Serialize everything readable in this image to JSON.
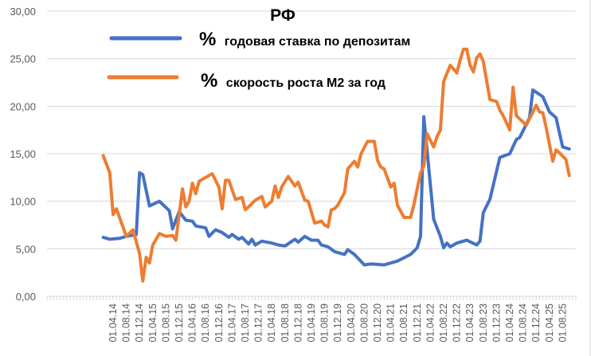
{
  "chart_data": {
    "type": "line",
    "title": "РФ",
    "xlabel": "",
    "ylabel": "",
    "ylim": [
      0,
      30
    ],
    "xlim": [
      "2012-08",
      "2025-12"
    ],
    "grid": true,
    "legend_placement": "top-center",
    "y_ticks": [
      "0,00",
      "5,00",
      "10,00",
      "15,00",
      "20,00",
      "25,00",
      "30,00"
    ],
    "y_tick_values": [
      0,
      5,
      10,
      15,
      20,
      25,
      30
    ],
    "x_tick_labels": [
      "01.04.14",
      "01.08.14",
      "01.12.14",
      "01.04.15",
      "01.08.15",
      "01.12.15",
      "01.04.16",
      "01.08.16",
      "01.12.16",
      "01.04.17",
      "01.08.17",
      "01.12.17",
      "01.04.18",
      "01.08.18",
      "01.12.18",
      "01.04.19",
      "01.08.19",
      "01.12.19",
      "01.04.20",
      "01.08.20",
      "01.12.20",
      "01.04.21",
      "01.08.21",
      "01.12.21",
      "01.04.22",
      "01.08.22",
      "01.12.22",
      "01.04.23",
      "01.08.23",
      "01.12.23",
      "01.04.24",
      "01.08.24",
      "01.12.24",
      "01.04.25",
      "01.08.25"
    ],
    "series": [
      {
        "name": "годовая ставка по депозитам",
        "legend_prefix": "%",
        "color": "#4472c4",
        "points": [
          [
            "2014-01",
            6.2
          ],
          [
            "2014-03",
            6.0
          ],
          [
            "2014-06",
            6.1
          ],
          [
            "2014-08",
            6.3
          ],
          [
            "2014-11",
            6.5
          ],
          [
            "2014-12",
            13.0
          ],
          [
            "2015-01",
            12.8
          ],
          [
            "2015-03",
            9.5
          ],
          [
            "2015-06",
            10.0
          ],
          [
            "2015-09",
            9.0
          ],
          [
            "2015-10",
            7.1
          ],
          [
            "2015-12",
            8.9
          ],
          [
            "2016-02",
            8.0
          ],
          [
            "2016-04",
            7.9
          ],
          [
            "2016-05",
            7.4
          ],
          [
            "2016-08",
            7.2
          ],
          [
            "2016-09",
            6.3
          ],
          [
            "2016-11",
            7.0
          ],
          [
            "2017-01",
            6.7
          ],
          [
            "2017-03",
            6.2
          ],
          [
            "2017-04",
            6.5
          ],
          [
            "2017-06",
            6.0
          ],
          [
            "2017-07",
            6.2
          ],
          [
            "2017-09",
            5.5
          ],
          [
            "2017-10",
            6.0
          ],
          [
            "2017-11",
            5.4
          ],
          [
            "2018-01",
            5.8
          ],
          [
            "2018-04",
            5.6
          ],
          [
            "2018-06",
            5.4
          ],
          [
            "2018-08",
            5.3
          ],
          [
            "2018-11",
            6.0
          ],
          [
            "2018-12",
            5.7
          ],
          [
            "2019-02",
            6.3
          ],
          [
            "2019-04",
            5.9
          ],
          [
            "2019-06",
            5.9
          ],
          [
            "2019-07",
            5.4
          ],
          [
            "2019-09",
            5.2
          ],
          [
            "2019-11",
            4.7
          ],
          [
            "2020-02",
            4.4
          ],
          [
            "2020-03",
            4.9
          ],
          [
            "2020-05",
            4.4
          ],
          [
            "2020-08",
            3.3
          ],
          [
            "2020-10",
            3.4
          ],
          [
            "2021-02",
            3.3
          ],
          [
            "2021-06",
            3.7
          ],
          [
            "2021-10",
            4.4
          ],
          [
            "2021-12",
            5.1
          ],
          [
            "2022-01",
            6.3
          ],
          [
            "2022-02",
            18.9
          ],
          [
            "2022-05",
            8.1
          ],
          [
            "2022-07",
            6.3
          ],
          [
            "2022-08",
            5.1
          ],
          [
            "2022-09",
            5.6
          ],
          [
            "2022-10",
            5.2
          ],
          [
            "2022-12",
            5.6
          ],
          [
            "2023-03",
            5.9
          ],
          [
            "2023-06",
            5.4
          ],
          [
            "2023-07",
            5.8
          ],
          [
            "2023-08",
            8.8
          ],
          [
            "2023-10",
            10.2
          ],
          [
            "2024-01",
            14.6
          ],
          [
            "2024-04",
            15.0
          ],
          [
            "2024-06",
            16.5
          ],
          [
            "2024-07",
            16.7
          ],
          [
            "2024-10",
            18.8
          ],
          [
            "2024-11",
            21.7
          ],
          [
            "2025-02",
            21.0
          ],
          [
            "2025-04",
            19.4
          ],
          [
            "2025-06",
            18.8
          ],
          [
            "2025-08",
            15.7
          ],
          [
            "2025-10",
            15.5
          ]
        ]
      },
      {
        "name": "скорость роста М2 за год",
        "legend_prefix": "%",
        "color": "#ed7d31",
        "points": [
          [
            "2014-01",
            14.8
          ],
          [
            "2014-03",
            13.0
          ],
          [
            "2014-04",
            8.6
          ],
          [
            "2014-05",
            9.2
          ],
          [
            "2014-08",
            6.3
          ],
          [
            "2014-10",
            7.0
          ],
          [
            "2014-12",
            4.5
          ],
          [
            "2015-01",
            1.6
          ],
          [
            "2015-02",
            4.1
          ],
          [
            "2015-03",
            3.5
          ],
          [
            "2015-04",
            5.4
          ],
          [
            "2015-06",
            6.6
          ],
          [
            "2015-08",
            6.3
          ],
          [
            "2015-10",
            6.4
          ],
          [
            "2015-11",
            5.9
          ],
          [
            "2016-01",
            11.3
          ],
          [
            "2016-02",
            9.4
          ],
          [
            "2016-03",
            10.0
          ],
          [
            "2016-04",
            11.9
          ],
          [
            "2016-05",
            10.8
          ],
          [
            "2016-06",
            12.1
          ],
          [
            "2016-08",
            12.5
          ],
          [
            "2016-10",
            12.9
          ],
          [
            "2016-12",
            11.5
          ],
          [
            "2017-01",
            9.2
          ],
          [
            "2017-02",
            12.2
          ],
          [
            "2017-03",
            12.2
          ],
          [
            "2017-05",
            10.2
          ],
          [
            "2017-07",
            10.4
          ],
          [
            "2017-08",
            9.1
          ],
          [
            "2017-09",
            9.4
          ],
          [
            "2017-11",
            10.1
          ],
          [
            "2018-01",
            10.5
          ],
          [
            "2018-02",
            9.4
          ],
          [
            "2018-04",
            10.0
          ],
          [
            "2018-05",
            11.6
          ],
          [
            "2018-06",
            10.4
          ],
          [
            "2018-07",
            11.5
          ],
          [
            "2018-09",
            12.6
          ],
          [
            "2018-11",
            11.6
          ],
          [
            "2018-12",
            12.0
          ],
          [
            "2019-02",
            10.1
          ],
          [
            "2019-03",
            10.0
          ],
          [
            "2019-05",
            7.7
          ],
          [
            "2019-07",
            7.9
          ],
          [
            "2019-08",
            7.5
          ],
          [
            "2019-09",
            7.3
          ],
          [
            "2019-10",
            9.1
          ],
          [
            "2019-11",
            9.2
          ],
          [
            "2019-12",
            9.6
          ],
          [
            "2020-02",
            10.9
          ],
          [
            "2020-03",
            13.4
          ],
          [
            "2020-05",
            14.2
          ],
          [
            "2020-06",
            13.6
          ],
          [
            "2020-07",
            15.0
          ],
          [
            "2020-09",
            16.3
          ],
          [
            "2020-11",
            16.3
          ],
          [
            "2020-12",
            14.3
          ],
          [
            "2021-01",
            13.6
          ],
          [
            "2021-02",
            13.4
          ],
          [
            "2021-04",
            11.5
          ],
          [
            "2021-05",
            11.9
          ],
          [
            "2021-06",
            9.6
          ],
          [
            "2021-08",
            8.3
          ],
          [
            "2021-10",
            8.3
          ],
          [
            "2021-11",
            9.6
          ],
          [
            "2022-01",
            13.0
          ],
          [
            "2022-02",
            13.7
          ],
          [
            "2022-03",
            17.1
          ],
          [
            "2022-05",
            15.7
          ],
          [
            "2022-06",
            16.8
          ],
          [
            "2022-07",
            17.5
          ],
          [
            "2022-08",
            22.6
          ],
          [
            "2022-10",
            24.3
          ],
          [
            "2022-12",
            23.5
          ],
          [
            "2023-01",
            24.9
          ],
          [
            "2023-02",
            26.0
          ],
          [
            "2023-03",
            26.0
          ],
          [
            "2023-04",
            24.3
          ],
          [
            "2023-05",
            23.6
          ],
          [
            "2023-06",
            25.1
          ],
          [
            "2023-07",
            25.5
          ],
          [
            "2023-08",
            24.7
          ],
          [
            "2023-10",
            20.7
          ],
          [
            "2023-12",
            20.5
          ],
          [
            "2024-01",
            19.6
          ],
          [
            "2024-02",
            19.0
          ],
          [
            "2024-04",
            17.5
          ],
          [
            "2024-05",
            22.0
          ],
          [
            "2024-06",
            19.0
          ],
          [
            "2024-09",
            18.0
          ],
          [
            "2024-12",
            20.1
          ],
          [
            "2025-01",
            19.4
          ],
          [
            "2025-02",
            19.3
          ],
          [
            "2025-03",
            17.8
          ],
          [
            "2025-05",
            14.2
          ],
          [
            "2025-06",
            15.4
          ],
          [
            "2025-07",
            15.1
          ],
          [
            "2025-09",
            14.4
          ],
          [
            "2025-10",
            12.7
          ]
        ]
      }
    ]
  }
}
